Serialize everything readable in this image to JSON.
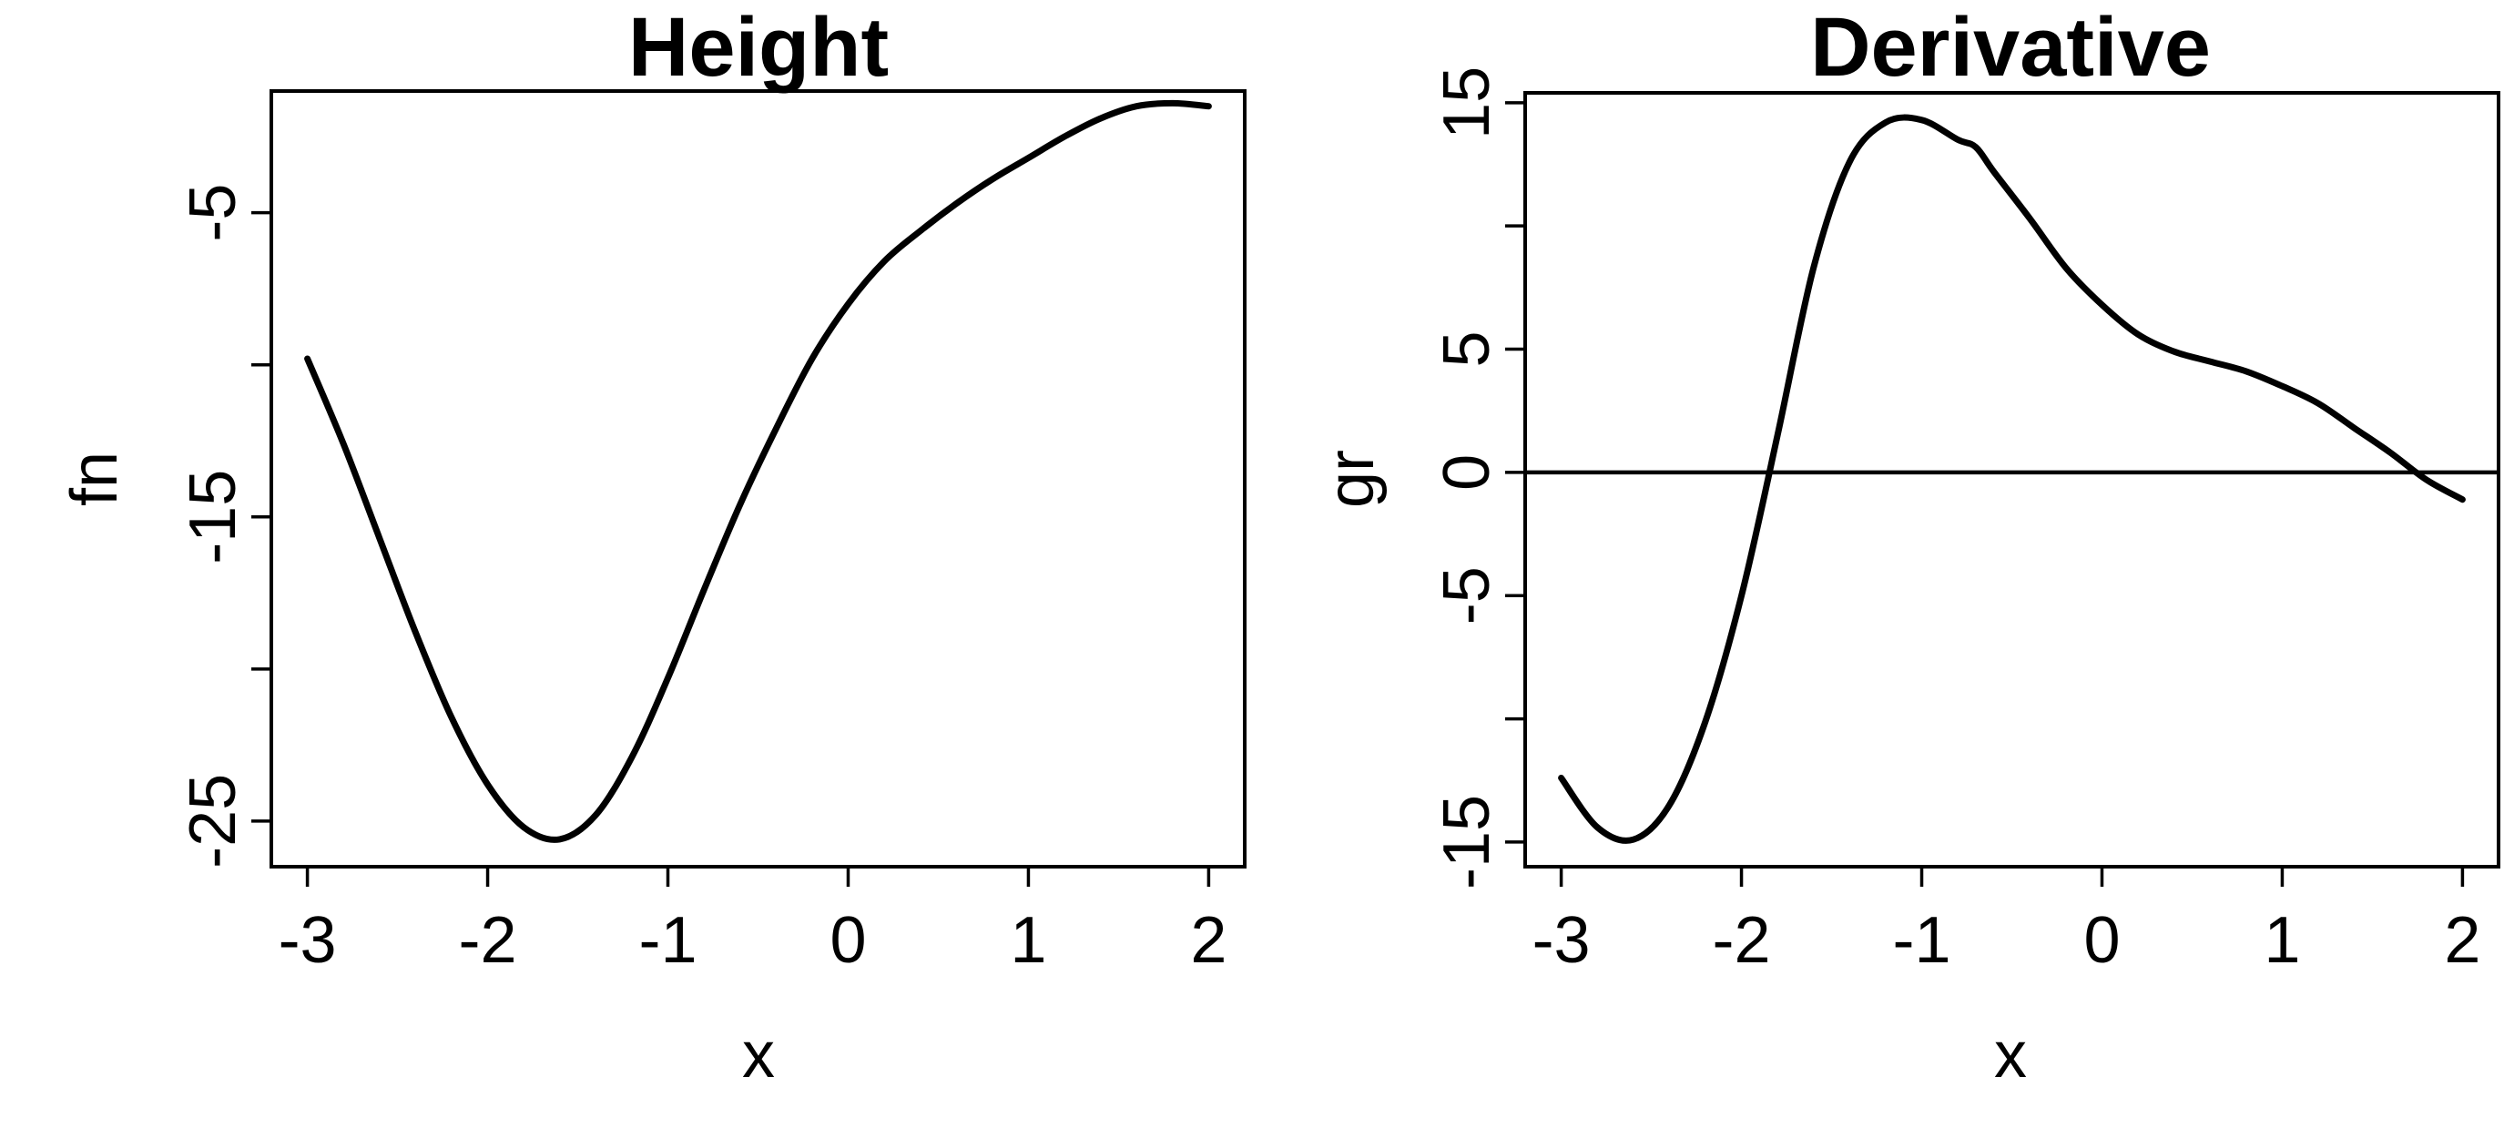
{
  "chart_data": [
    {
      "type": "line",
      "title": "Height",
      "xlabel": "x",
      "ylabel": "fn",
      "xlim": [
        -3.2,
        2.2
      ],
      "ylim": [
        -26.5,
        -1.0
      ],
      "x_ticks": [
        -3,
        -2,
        -1,
        0,
        1,
        2
      ],
      "x_tick_labels": [
        "-3",
        "-2",
        "-1",
        "0",
        "1",
        "2"
      ],
      "y_ticks": [
        -25,
        -20,
        -15,
        -10,
        -5
      ],
      "y_tick_labels": [
        "-25",
        "",
        "-15",
        "",
        "-5"
      ],
      "grid": false,
      "series": [
        {
          "x": [
            -3.0,
            -2.8,
            -2.6,
            -2.4,
            -2.2,
            -2.0,
            -1.8,
            -1.6,
            -1.4,
            -1.2,
            -1.0,
            -0.8,
            -0.6,
            -0.4,
            -0.2,
            0.0,
            0.2,
            0.4,
            0.6,
            0.8,
            1.0,
            1.2,
            1.4,
            1.6,
            1.8,
            2.0
          ],
          "y": [
            -9.8,
            -12.6,
            -15.7,
            -18.8,
            -21.6,
            -23.8,
            -25.2,
            -25.6,
            -24.8,
            -22.9,
            -20.3,
            -17.4,
            -14.6,
            -12.1,
            -9.8,
            -8.0,
            -6.6,
            -5.6,
            -4.7,
            -3.9,
            -3.2,
            -2.5,
            -1.9,
            -1.5,
            -1.4,
            -1.5
          ]
        }
      ]
    },
    {
      "type": "line",
      "title": "Derivative",
      "xlabel": "x",
      "ylabel": "gr",
      "xlim": [
        -3.2,
        2.2
      ],
      "ylim": [
        -16.0,
        15.4
      ],
      "x_ticks": [
        -3,
        -2,
        -1,
        0,
        1,
        2
      ],
      "x_tick_labels": [
        "-3",
        "-2",
        "-1",
        "0",
        "1",
        "2"
      ],
      "y_ticks": [
        -15,
        -10,
        -5,
        0,
        5,
        10,
        15
      ],
      "y_tick_labels": [
        "-15",
        "",
        "-5",
        "0",
        "5",
        "",
        "15"
      ],
      "grid": false,
      "hline": 0,
      "series": [
        {
          "x": [
            -3.0,
            -2.8,
            -2.6,
            -2.4,
            -2.2,
            -2.0,
            -1.8,
            -1.6,
            -1.4,
            -1.2,
            -1.0,
            -0.8,
            -0.7,
            -0.6,
            -0.4,
            -0.2,
            0.0,
            0.2,
            0.4,
            0.6,
            0.8,
            1.0,
            1.2,
            1.4,
            1.6,
            1.8,
            2.0
          ],
          "y": [
            -12.4,
            -14.4,
            -14.9,
            -13.5,
            -10.1,
            -5.0,
            1.5,
            8.3,
            12.6,
            14.2,
            14.3,
            13.5,
            13.2,
            12.2,
            10.3,
            8.3,
            6.8,
            5.6,
            4.9,
            4.5,
            4.1,
            3.5,
            2.8,
            1.8,
            0.8,
            -0.3,
            -1.1
          ]
        }
      ]
    }
  ]
}
